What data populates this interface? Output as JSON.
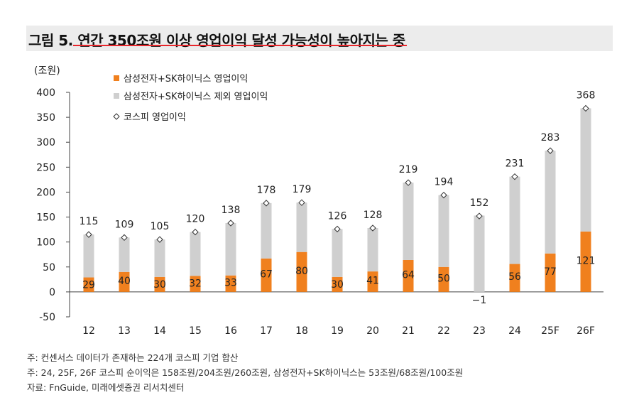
{
  "title": "그림 5. 연간 350조원 이상 영업이익 달성 가능성이 높아지는 중",
  "notes": [
    "주: 컨센서스 데이터가 존재하는 224개 코스피 기업 합산",
    "주: 24, 25F, 26F 코스피 순이익은 158조원/204조원/260조원, 삼성전자+SK하이닉스는 53조원/68조원/100조원",
    "자료: FnGuide, 미래에셋증권 리서치센터"
  ],
  "colors": {
    "orange": "#f0801e",
    "gray": "#cfcfcf",
    "title_accent": "#e8262b"
  },
  "chart_data": {
    "type": "bar",
    "stacked": true,
    "unit_label": "(조원)",
    "categories": [
      "12",
      "13",
      "14",
      "15",
      "16",
      "17",
      "18",
      "19",
      "20",
      "21",
      "22",
      "23",
      "24",
      "25F",
      "26F"
    ],
    "series": [
      {
        "name": "삼성전자+SK하이닉스 영업이익",
        "values": [
          29,
          40,
          30,
          32,
          33,
          67,
          80,
          30,
          41,
          64,
          50,
          -1,
          56,
          77,
          121
        ]
      },
      {
        "name": "삼성전자+SK하이닉스 제외 영업이익",
        "values": [
          86,
          69,
          75,
          88,
          105,
          111,
          99,
          96,
          87,
          155,
          144,
          153,
          175,
          206,
          247
        ]
      }
    ],
    "markers": {
      "name": "코스피 영업이익",
      "values": [
        115,
        109,
        105,
        120,
        138,
        178,
        179,
        126,
        128,
        219,
        194,
        152,
        231,
        283,
        368
      ]
    },
    "ylim": [
      -50,
      400
    ],
    "yticks": [
      -50,
      0,
      50,
      100,
      150,
      200,
      250,
      300,
      350,
      400
    ],
    "legend_position": "top-left"
  }
}
